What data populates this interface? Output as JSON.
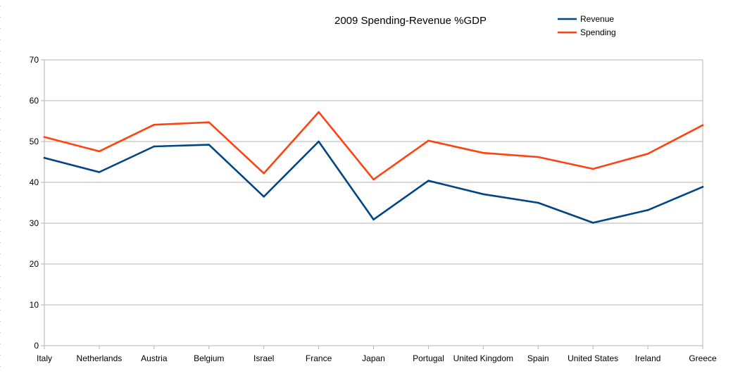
{
  "chart_data": {
    "type": "line",
    "title": "2009 Spending-Revenue %GDP",
    "xlabel": "",
    "ylabel": "",
    "categories": [
      "Italy",
      "Netherlands",
      "Austria",
      "Belgium",
      "Israel",
      "France",
      "Japan",
      "Portugal",
      "United Kingdom",
      "Spain",
      "United States",
      "Ireland",
      "Greece"
    ],
    "yticks": [
      "0",
      "10",
      "20",
      "30",
      "40",
      "50",
      "60",
      "70"
    ],
    "ylim": [
      0,
      70
    ],
    "grid": true,
    "legend_position": "top-right",
    "series": [
      {
        "name": "Revenue",
        "color": "#004586",
        "values": [
          46.0,
          42.5,
          48.8,
          49.2,
          36.5,
          50.0,
          30.9,
          40.4,
          37.1,
          35.0,
          30.1,
          33.2,
          38.9
        ]
      },
      {
        "name": "Spending",
        "color": "#ff420e",
        "values": [
          51.1,
          47.6,
          54.1,
          54.7,
          42.2,
          57.2,
          40.7,
          50.2,
          47.2,
          46.2,
          43.3,
          47.0,
          54.0
        ]
      }
    ]
  }
}
